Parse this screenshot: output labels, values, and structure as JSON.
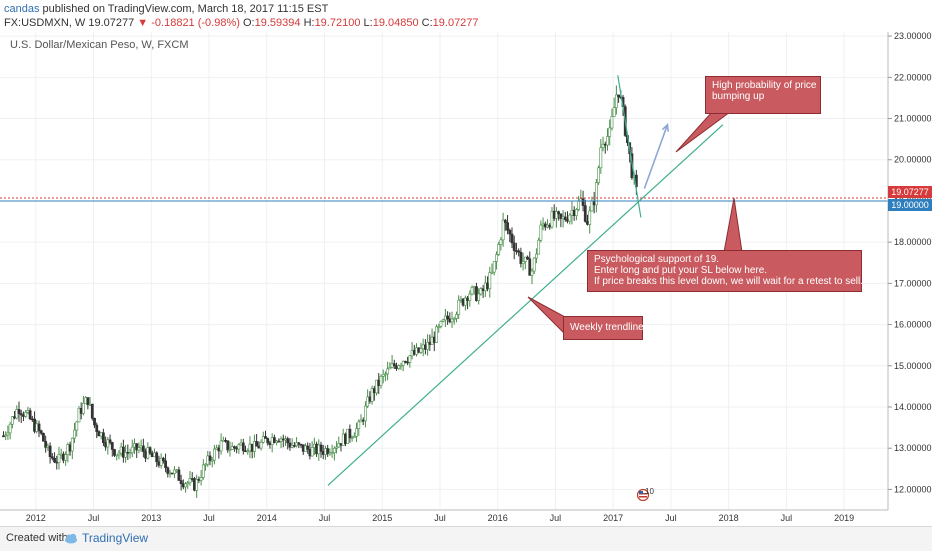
{
  "header": {
    "author": "candas",
    "published": "published on TradingView.com, March 18, 2017 11:15 EST",
    "symbol": "FX:USDMXN, W",
    "last": "19.07277",
    "change": "-0.18821 (-0.98%)",
    "o_label": "O:",
    "o_val": "19.59394",
    "h_label": "H:",
    "h_val": "19.72100",
    "l_label": "L:",
    "l_val": "19.04850",
    "c_label": "C:",
    "c_val": "19.07277"
  },
  "chart_data": {
    "type": "candlestick",
    "title": "U.S. Dollar/Mexican Peso, W, FXCM",
    "x_ticks": [
      "2012",
      "Jul",
      "2013",
      "Jul",
      "2014",
      "Jul",
      "2015",
      "Jul",
      "2016",
      "Jul",
      "2017",
      "Jul",
      "2018",
      "Jul",
      "2019"
    ],
    "x_tick_dates": [
      2012.0,
      2012.5,
      2013.0,
      2013.5,
      2014.0,
      2014.5,
      2015.0,
      2015.5,
      2016.0,
      2016.5,
      2017.0,
      2017.5,
      2018.0,
      2018.5,
      2019.0
    ],
    "y_ticks": [
      "12.00000",
      "13.00000",
      "14.00000",
      "15.00000",
      "16.00000",
      "17.00000",
      "18.00000",
      "19.00000",
      "20.00000",
      "21.00000",
      "22.00000",
      "23.00000"
    ],
    "ylim": [
      11.5,
      23.1
    ],
    "xlim": [
      2011.69,
      2019.38
    ],
    "price_path": [
      [
        2011.72,
        13.3
      ],
      [
        2011.85,
        14.0
      ],
      [
        2011.95,
        13.7
      ],
      [
        2012.05,
        13.3
      ],
      [
        2012.12,
        12.8
      ],
      [
        2012.2,
        12.7
      ],
      [
        2012.3,
        13.1
      ],
      [
        2012.38,
        13.9
      ],
      [
        2012.45,
        14.2
      ],
      [
        2012.5,
        13.6
      ],
      [
        2012.6,
        13.2
      ],
      [
        2012.7,
        12.9
      ],
      [
        2012.8,
        12.9
      ],
      [
        2012.9,
        13.0
      ],
      [
        2013.0,
        12.8
      ],
      [
        2013.1,
        12.6
      ],
      [
        2013.2,
        12.4
      ],
      [
        2013.28,
        12.2
      ],
      [
        2013.38,
        12.1
      ],
      [
        2013.45,
        12.5
      ],
      [
        2013.52,
        12.8
      ],
      [
        2013.6,
        13.1
      ],
      [
        2013.7,
        13.0
      ],
      [
        2013.8,
        13.1
      ],
      [
        2013.9,
        13.0
      ],
      [
        2014.0,
        13.2
      ],
      [
        2014.1,
        13.3
      ],
      [
        2014.2,
        13.1
      ],
      [
        2014.3,
        13.0
      ],
      [
        2014.4,
        12.95
      ],
      [
        2014.5,
        12.95
      ],
      [
        2014.6,
        13.1
      ],
      [
        2014.7,
        13.3
      ],
      [
        2014.8,
        13.5
      ],
      [
        2014.9,
        14.3
      ],
      [
        2015.0,
        14.7
      ],
      [
        2015.1,
        15.0
      ],
      [
        2015.2,
        15.2
      ],
      [
        2015.3,
        15.3
      ],
      [
        2015.4,
        15.5
      ],
      [
        2015.5,
        15.9
      ],
      [
        2015.55,
        16.1
      ],
      [
        2015.65,
        16.4
      ],
      [
        2015.75,
        16.8
      ],
      [
        2015.85,
        16.7
      ],
      [
        2015.95,
        17.2
      ],
      [
        2016.0,
        17.8
      ],
      [
        2016.05,
        18.5
      ],
      [
        2016.1,
        18.2
      ],
      [
        2016.2,
        17.6
      ],
      [
        2016.3,
        17.3
      ],
      [
        2016.38,
        18.4
      ],
      [
        2016.48,
        18.6
      ],
      [
        2016.55,
        18.5
      ],
      [
        2016.62,
        18.7
      ],
      [
        2016.72,
        19.0
      ],
      [
        2016.78,
        18.5
      ],
      [
        2016.85,
        19.2
      ],
      [
        2016.9,
        20.5
      ],
      [
        2016.97,
        20.6
      ],
      [
        2017.04,
        21.8
      ],
      [
        2017.08,
        21.2
      ],
      [
        2017.13,
        20.3
      ],
      [
        2017.17,
        19.6
      ],
      [
        2017.21,
        19.07
      ]
    ],
    "trendlines": [
      {
        "name": "weekly-trendline",
        "from": [
          2014.53,
          12.1
        ],
        "to": [
          2017.95,
          20.85
        ]
      },
      {
        "name": "down-trendline",
        "from": [
          2017.04,
          22.05
        ],
        "to": [
          2017.24,
          18.6
        ]
      },
      {
        "name": "projection-arrow",
        "from": [
          2017.27,
          19.3
        ],
        "to": [
          2017.47,
          20.85
        ]
      }
    ],
    "support_level": 19.0,
    "current_price": 19.07277,
    "support_label": "19.00000",
    "price_label": "19.07277",
    "event_label": "10",
    "annotations": [
      "High probability of price bumping up",
      "Psychological support of 19.",
      "Enter long and put your SL below here.",
      "If price breaks this level down, we will wait for a retest to sell.",
      "Weekly trendline"
    ]
  },
  "notes": {
    "n1_line1": "High probability of price",
    "n1_line2": "bumping up",
    "n2_line1": "Psychological support of 19.",
    "n2_line2": "Enter long and put your SL below here.",
    "n2_line3": "If price breaks this level down, we will wait for a retest to sell.",
    "n3": "Weekly trendline"
  },
  "footer": {
    "created": "Created with",
    "brand": "TradingView"
  },
  "colors": {
    "up": "#4a8f4a",
    "down": "#333333",
    "trend": "#3fae8c",
    "note": "#c95b60",
    "support": "#2f7fbf",
    "price": "#d63a3a"
  }
}
